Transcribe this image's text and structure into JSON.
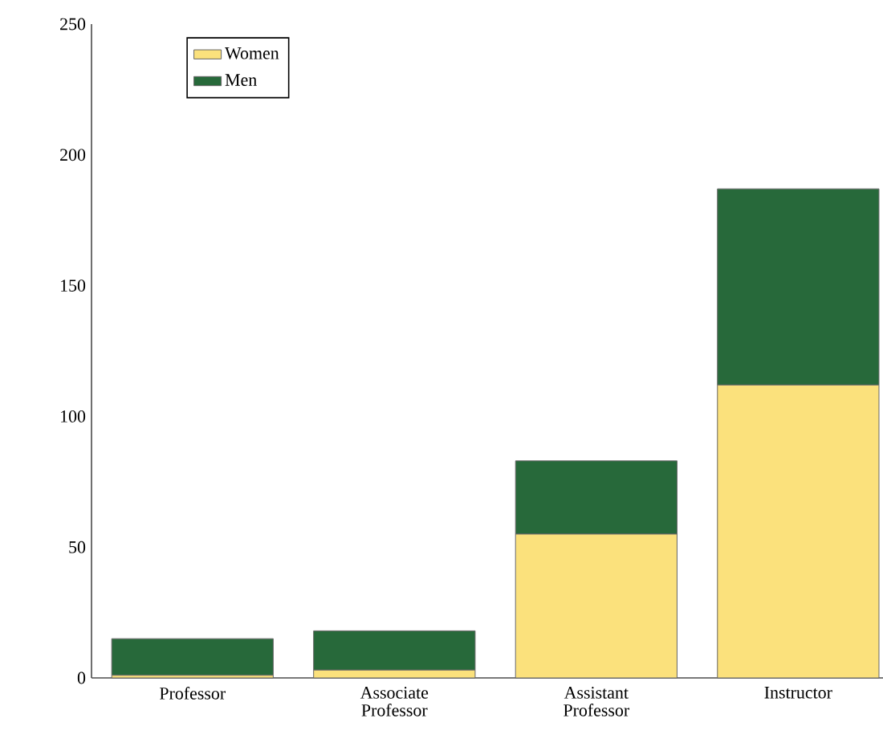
{
  "chart_data": {
    "type": "bar",
    "stacked": true,
    "categories": [
      "Professor",
      "Associate Professor",
      "Assistant Professor",
      "Instructor"
    ],
    "series": [
      {
        "name": "Women",
        "color": "#fbe17c",
        "values": [
          1,
          3,
          55,
          112
        ]
      },
      {
        "name": "Men",
        "color": "#27693a",
        "values": [
          14,
          15,
          28,
          75
        ]
      }
    ],
    "ylim": [
      0,
      250
    ],
    "yticks": [
      0,
      50,
      100,
      150,
      200,
      250
    ],
    "legend": "top left",
    "grid": false
  }
}
